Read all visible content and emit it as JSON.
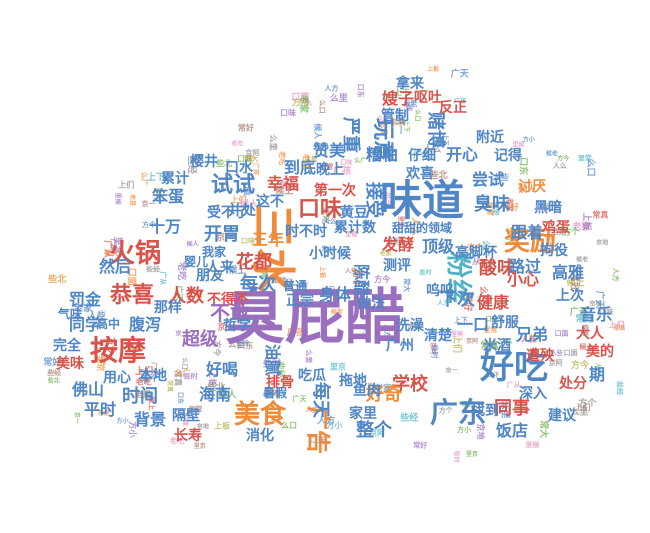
{
  "palette": {
    "blue": "#4f86c6",
    "orange": "#ef8b3a",
    "green": "#6cae4a",
    "red": "#d9534a",
    "purple": "#9a6fbf",
    "brown": "#a9786a",
    "pink": "#e58fc2",
    "grey": "#8a8a8a",
    "olive": "#b3b349",
    "teal": "#4fb4c4"
  },
  "words": [
    {
      "text": "臭屁醋",
      "color": "purple"
    },
    {
      "text": "味道",
      "color": "blue"
    },
    {
      "text": "三水",
      "color": "orange"
    },
    {
      "text": "好吃",
      "color": "blue"
    },
    {
      "text": "按摩",
      "color": "red"
    },
    {
      "text": "广东",
      "color": "blue"
    },
    {
      "text": "火锅",
      "color": "red"
    },
    {
      "text": "粉丝",
      "color": "teal"
    },
    {
      "text": "奖励",
      "color": "orange"
    },
    {
      "text": "美食",
      "color": "orange"
    },
    {
      "text": "恭喜",
      "color": "red"
    },
    {
      "text": "玩意",
      "color": "blue"
    },
    {
      "text": "广告",
      "color": "orange"
    },
    {
      "text": "试试",
      "color": "blue"
    },
    {
      "text": "口味",
      "color": "red"
    },
    {
      "text": "开胃",
      "color": "blue"
    },
    {
      "text": "接受",
      "color": "blue"
    },
    {
      "text": "每次",
      "color": "blue"
    },
    {
      "text": "每天",
      "color": "blue"
    },
    {
      "text": "时间",
      "color": "blue"
    },
    {
      "text": "不敢",
      "color": "purple"
    },
    {
      "text": "超级",
      "color": "purple"
    },
    {
      "text": "人数",
      "color": "red"
    },
    {
      "text": "花都",
      "color": "red"
    },
    {
      "text": "开心",
      "color": "blue"
    },
    {
      "text": "臭味",
      "color": "blue"
    },
    {
      "text": "酸味",
      "color": "red"
    },
    {
      "text": "下次",
      "color": "blue"
    },
    {
      "text": "同事",
      "color": "red"
    },
    {
      "text": "学校",
      "color": "red"
    },
    {
      "text": "整个",
      "color": "blue"
    },
    {
      "text": "赌博",
      "color": "blue"
    },
    {
      "text": "严重",
      "color": "blue"
    },
    {
      "text": "嫂子",
      "color": "red"
    },
    {
      "text": "小心",
      "color": "red"
    },
    {
      "text": "兄弟",
      "color": "blue"
    },
    {
      "text": "饭店",
      "color": "blue"
    },
    {
      "text": "背景",
      "color": "blue"
    },
    {
      "text": "海南",
      "color": "blue"
    },
    {
      "text": "油腻",
      "color": "blue"
    },
    {
      "text": "然后",
      "color": "blue"
    },
    {
      "text": "十万",
      "color": "blue"
    },
    {
      "text": "三年",
      "color": "orange"
    },
    {
      "text": "佛山",
      "color": "blue"
    },
    {
      "text": "罚金",
      "color": "blue"
    },
    {
      "text": "同学",
      "color": "blue"
    },
    {
      "text": "腹泻",
      "color": "blue"
    },
    {
      "text": "好喝",
      "color": "blue"
    },
    {
      "text": "消化",
      "color": "blue"
    },
    {
      "text": "隔壁",
      "color": "blue"
    },
    {
      "text": "排骨",
      "color": "red"
    },
    {
      "text": "陈醋",
      "color": "blue"
    },
    {
      "text": "身体",
      "color": "blue"
    },
    {
      "text": "顶级",
      "color": "blue"
    },
    {
      "text": "发酵",
      "color": "red"
    },
    {
      "text": "跟着",
      "color": "blue"
    },
    {
      "text": "路过",
      "color": "blue"
    },
    {
      "text": "高雅",
      "color": "blue"
    },
    {
      "text": "音乐",
      "color": "blue"
    },
    {
      "text": "上次",
      "color": "blue"
    },
    {
      "text": "遭殃",
      "color": "red"
    },
    {
      "text": "建议",
      "color": "blue"
    },
    {
      "text": "好奇",
      "color": "orange"
    },
    {
      "text": "本地",
      "color": "blue"
    },
    {
      "text": "平时",
      "color": "blue"
    },
    {
      "text": "尝试",
      "color": "blue"
    },
    {
      "text": "幸福",
      "color": "red"
    },
    {
      "text": "到底",
      "color": "blue"
    },
    {
      "text": "赞美",
      "color": "blue"
    },
    {
      "text": "糟粕",
      "color": "blue"
    },
    {
      "text": "黄豆",
      "color": "blue"
    },
    {
      "text": "口水",
      "color": "blue"
    },
    {
      "text": "笨蛋",
      "color": "blue"
    },
    {
      "text": "累计",
      "color": "blue"
    },
    {
      "text": "樱井",
      "color": "blue"
    },
    {
      "text": "第一次",
      "color": "red"
    },
    {
      "text": "时不时",
      "color": "blue"
    },
    {
      "text": "累计数",
      "color": "blue"
    },
    {
      "text": "甜甜的领域",
      "color": "blue"
    },
    {
      "text": "高脚杯",
      "color": "blue"
    },
    {
      "text": "鸡蛋",
      "color": "red"
    },
    {
      "text": "拘役",
      "color": "blue"
    },
    {
      "text": "讨厌",
      "color": "orange"
    },
    {
      "text": "黑暗",
      "color": "blue"
    },
    {
      "text": "附近",
      "color": "blue"
    },
    {
      "text": "记得",
      "color": "blue"
    },
    {
      "text": "反正",
      "color": "red"
    },
    {
      "text": "呕吐",
      "color": "red"
    },
    {
      "text": "管制",
      "color": "blue"
    },
    {
      "text": "拿来",
      "color": "blue"
    },
    {
      "text": "仔细",
      "color": "blue"
    },
    {
      "text": "欢喜",
      "color": "blue"
    },
    {
      "text": "晚上",
      "color": "blue"
    },
    {
      "text": "健康",
      "color": "red"
    },
    {
      "text": "舒服",
      "color": "blue"
    },
    {
      "text": "一口",
      "color": "blue"
    },
    {
      "text": "呜呜",
      "color": "blue"
    },
    {
      "text": "清楚",
      "color": "blue"
    },
    {
      "text": "洗澡",
      "color": "blue"
    },
    {
      "text": "深入",
      "color": "blue"
    },
    {
      "text": "找到",
      "color": "blue"
    },
    {
      "text": "米酒",
      "color": "blue"
    },
    {
      "text": "家里",
      "color": "blue"
    },
    {
      "text": "鱼肉",
      "color": "blue"
    },
    {
      "text": "拖地",
      "color": "blue"
    },
    {
      "text": "吃瓜",
      "color": "blue"
    },
    {
      "text": "长寿",
      "color": "red"
    },
    {
      "text": "哲学",
      "color": "blue"
    },
    {
      "text": "用心",
      "color": "blue"
    },
    {
      "text": "完全",
      "color": "blue"
    },
    {
      "text": "美味",
      "color": "red"
    },
    {
      "text": "气味",
      "color": "blue"
    },
    {
      "text": "朋友",
      "color": "blue"
    },
    {
      "text": "正宗",
      "color": "blue"
    },
    {
      "text": "普通",
      "color": "blue"
    },
    {
      "text": "做法",
      "color": "blue"
    },
    {
      "text": "测评",
      "color": "blue"
    },
    {
      "text": "人来",
      "color": "blue"
    },
    {
      "text": "不得不",
      "color": "red"
    },
    {
      "text": "婴儿",
      "color": "blue"
    },
    {
      "text": "我家",
      "color": "blue"
    },
    {
      "text": "受不了",
      "color": "blue"
    },
    {
      "text": "并处",
      "color": "blue"
    },
    {
      "text": "这不",
      "color": "blue"
    },
    {
      "text": "小时候",
      "color": "blue"
    },
    {
      "text": "广州",
      "color": "blue"
    },
    {
      "text": "期",
      "color": "blue"
    },
    {
      "text": "大人",
      "color": "red"
    },
    {
      "text": "美的",
      "color": "red"
    },
    {
      "text": "处分",
      "color": "red"
    },
    {
      "text": "那样",
      "color": "blue"
    },
    {
      "text": "高中",
      "color": "blue"
    },
    {
      "text": "暑假",
      "color": "blue"
    }
  ]
}
